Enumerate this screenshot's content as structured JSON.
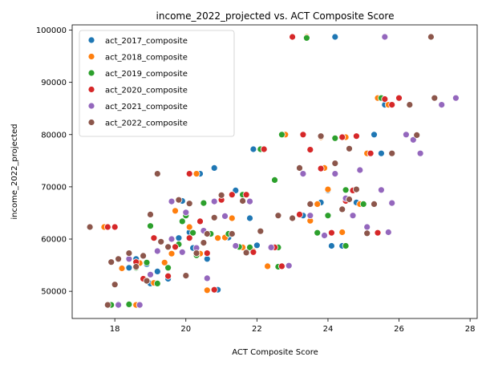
{
  "chart_data": {
    "type": "scatter",
    "title": "income_2022_projected vs. ACT Composite Score",
    "xlabel": "ACT Composite Score",
    "ylabel": "income_2022_projected",
    "xlim": [
      16.8,
      28.2
    ],
    "ylim": [
      44800,
      101000
    ],
    "xticks": [
      18,
      20,
      22,
      24,
      26,
      28
    ],
    "yticks": [
      50000,
      60000,
      70000,
      80000,
      90000,
      100000
    ],
    "ytick_labels": [
      "50000",
      "60000",
      "70000",
      "80000",
      "90000",
      "100000"
    ],
    "legend": "top-left",
    "grid": false,
    "series": [
      {
        "name": "act_2017_composite",
        "color": "#1f77b4",
        "points": [
          [
            17.8,
            62300
          ],
          [
            18.1,
            47500
          ],
          [
            18.4,
            54500
          ],
          [
            18.6,
            56200
          ],
          [
            18.9,
            55200
          ],
          [
            19.0,
            51500
          ],
          [
            19.2,
            53800
          ],
          [
            19.5,
            52400
          ],
          [
            19.8,
            60200
          ],
          [
            19.9,
            67300
          ],
          [
            20.0,
            64500
          ],
          [
            20.1,
            61300
          ],
          [
            20.2,
            58300
          ],
          [
            20.4,
            72500
          ],
          [
            20.6,
            56200
          ],
          [
            20.8,
            73600
          ],
          [
            20.9,
            50300
          ],
          [
            21.2,
            60300
          ],
          [
            21.4,
            69300
          ],
          [
            21.5,
            58500
          ],
          [
            21.8,
            64000
          ],
          [
            21.9,
            77200
          ],
          [
            22.0,
            58800
          ],
          [
            22.3,
            54900
          ],
          [
            22.5,
            58500
          ],
          [
            22.7,
            80000
          ],
          [
            23.3,
            64500
          ],
          [
            23.8,
            67000
          ],
          [
            24.0,
            69300
          ],
          [
            24.1,
            58700
          ],
          [
            24.2,
            98700
          ],
          [
            24.2,
            79300
          ],
          [
            24.4,
            58700
          ],
          [
            24.8,
            67000
          ],
          [
            25.3,
            80000
          ],
          [
            25.4,
            87000
          ],
          [
            25.5,
            76400
          ],
          [
            25.6,
            85700
          ]
        ]
      },
      {
        "name": "act_2018_composite",
        "color": "#ff7f0e",
        "points": [
          [
            17.7,
            62300
          ],
          [
            18.2,
            54400
          ],
          [
            18.6,
            47400
          ],
          [
            18.7,
            55400
          ],
          [
            19.1,
            51600
          ],
          [
            19.4,
            55500
          ],
          [
            19.6,
            57200
          ],
          [
            19.7,
            65400
          ],
          [
            20.1,
            62300
          ],
          [
            20.3,
            72500
          ],
          [
            20.4,
            57200
          ],
          [
            20.6,
            50200
          ],
          [
            20.9,
            60200
          ],
          [
            21.1,
            60300
          ],
          [
            21.3,
            64000
          ],
          [
            21.6,
            58400
          ],
          [
            21.9,
            57700
          ],
          [
            22.3,
            54800
          ],
          [
            22.5,
            71300
          ],
          [
            22.8,
            80000
          ],
          [
            23.4,
            98700
          ],
          [
            23.5,
            63500
          ],
          [
            23.7,
            66700
          ],
          [
            23.8,
            79500
          ],
          [
            23.9,
            73600
          ],
          [
            24.0,
            69500
          ],
          [
            24.1,
            61200
          ],
          [
            24.4,
            61300
          ],
          [
            24.5,
            79500
          ],
          [
            24.9,
            66700
          ],
          [
            25.1,
            76400
          ],
          [
            25.4,
            87000
          ],
          [
            25.7,
            85700
          ]
        ]
      },
      {
        "name": "act_2019_composite",
        "color": "#2ca02c",
        "points": [
          [
            17.9,
            47400
          ],
          [
            18.4,
            47500
          ],
          [
            18.6,
            54500
          ],
          [
            18.9,
            55500
          ],
          [
            19.0,
            62500
          ],
          [
            19.2,
            51500
          ],
          [
            19.5,
            54500
          ],
          [
            19.8,
            59000
          ],
          [
            19.9,
            63400
          ],
          [
            20.0,
            64500
          ],
          [
            20.2,
            61200
          ],
          [
            20.3,
            56900
          ],
          [
            20.5,
            66900
          ],
          [
            20.7,
            61000
          ],
          [
            21.2,
            61000
          ],
          [
            21.5,
            58500
          ],
          [
            21.6,
            68500
          ],
          [
            21.8,
            58400
          ],
          [
            22.1,
            77200
          ],
          [
            22.5,
            71300
          ],
          [
            22.6,
            54700
          ],
          [
            22.6,
            58400
          ],
          [
            22.7,
            80000
          ],
          [
            23.4,
            98500
          ],
          [
            23.7,
            61200
          ],
          [
            24.0,
            64500
          ],
          [
            24.2,
            79300
          ],
          [
            24.5,
            58700
          ],
          [
            24.5,
            69400
          ],
          [
            25.0,
            66700
          ],
          [
            25.2,
            76400
          ],
          [
            25.5,
            87000
          ]
        ]
      },
      {
        "name": "act_2020_composite",
        "color": "#d62728",
        "points": [
          [
            17.8,
            62300
          ],
          [
            18.0,
            62300
          ],
          [
            18.6,
            55600
          ],
          [
            18.8,
            52400
          ],
          [
            19.1,
            60200
          ],
          [
            19.5,
            52900
          ],
          [
            19.7,
            58500
          ],
          [
            20.1,
            60200
          ],
          [
            20.1,
            72500
          ],
          [
            20.4,
            63400
          ],
          [
            20.6,
            57300
          ],
          [
            20.8,
            50300
          ],
          [
            21.0,
            67500
          ],
          [
            21.3,
            68500
          ],
          [
            21.7,
            68500
          ],
          [
            21.9,
            57500
          ],
          [
            22.2,
            77200
          ],
          [
            22.5,
            58400
          ],
          [
            22.7,
            54800
          ],
          [
            23.0,
            98700
          ],
          [
            23.2,
            64700
          ],
          [
            23.3,
            80000
          ],
          [
            23.5,
            77100
          ],
          [
            23.8,
            73500
          ],
          [
            24.1,
            61200
          ],
          [
            24.4,
            79500
          ],
          [
            24.5,
            67300
          ],
          [
            24.7,
            69300
          ],
          [
            24.8,
            79700
          ],
          [
            25.2,
            76400
          ],
          [
            25.4,
            61200
          ],
          [
            25.6,
            86800
          ],
          [
            25.8,
            85700
          ],
          [
            26.0,
            87000
          ]
        ]
      },
      {
        "name": "act_2021_composite",
        "color": "#9467bd",
        "points": [
          [
            18.1,
            47400
          ],
          [
            18.4,
            56200
          ],
          [
            18.7,
            47400
          ],
          [
            19.0,
            53200
          ],
          [
            19.2,
            57700
          ],
          [
            19.6,
            60000
          ],
          [
            19.6,
            67200
          ],
          [
            19.9,
            57500
          ],
          [
            20.0,
            65100
          ],
          [
            20.3,
            58300
          ],
          [
            20.5,
            61600
          ],
          [
            20.6,
            52500
          ],
          [
            20.8,
            67200
          ],
          [
            21.1,
            64400
          ],
          [
            21.4,
            58700
          ],
          [
            21.8,
            67200
          ],
          [
            22.4,
            58400
          ],
          [
            22.9,
            54900
          ],
          [
            23.3,
            72500
          ],
          [
            23.5,
            64500
          ],
          [
            23.9,
            60700
          ],
          [
            24.2,
            72500
          ],
          [
            24.5,
            67800
          ],
          [
            24.7,
            64500
          ],
          [
            24.9,
            73200
          ],
          [
            25.1,
            62300
          ],
          [
            25.5,
            69400
          ],
          [
            25.6,
            98700
          ],
          [
            25.7,
            61300
          ],
          [
            25.8,
            66900
          ],
          [
            26.2,
            80000
          ],
          [
            26.4,
            79000
          ],
          [
            26.6,
            76400
          ],
          [
            27.2,
            85700
          ],
          [
            27.6,
            87000
          ]
        ]
      },
      {
        "name": "act_2022_composite",
        "color": "#8c564b",
        "points": [
          [
            17.3,
            62300
          ],
          [
            17.8,
            47400
          ],
          [
            17.9,
            55600
          ],
          [
            18.0,
            51300
          ],
          [
            18.1,
            56200
          ],
          [
            18.4,
            57300
          ],
          [
            18.6,
            54700
          ],
          [
            18.8,
            56800
          ],
          [
            18.9,
            52000
          ],
          [
            19.0,
            64700
          ],
          [
            19.2,
            72500
          ],
          [
            19.3,
            59500
          ],
          [
            19.5,
            58500
          ],
          [
            19.8,
            67500
          ],
          [
            20.0,
            53000
          ],
          [
            20.1,
            66800
          ],
          [
            20.3,
            57300
          ],
          [
            20.5,
            59300
          ],
          [
            20.6,
            61000
          ],
          [
            20.8,
            64100
          ],
          [
            21.0,
            68400
          ],
          [
            21.3,
            61000
          ],
          [
            21.6,
            67300
          ],
          [
            21.7,
            57400
          ],
          [
            22.1,
            61500
          ],
          [
            22.6,
            64500
          ],
          [
            23.0,
            64000
          ],
          [
            23.2,
            73600
          ],
          [
            23.5,
            66700
          ],
          [
            23.8,
            79700
          ],
          [
            24.2,
            74500
          ],
          [
            24.4,
            65700
          ],
          [
            24.6,
            77300
          ],
          [
            24.6,
            67600
          ],
          [
            24.8,
            69500
          ],
          [
            25.1,
            61100
          ],
          [
            25.3,
            66700
          ],
          [
            25.8,
            76400
          ],
          [
            26.3,
            85700
          ],
          [
            26.5,
            79900
          ],
          [
            26.9,
            98700
          ],
          [
            27.0,
            87000
          ]
        ]
      }
    ]
  }
}
